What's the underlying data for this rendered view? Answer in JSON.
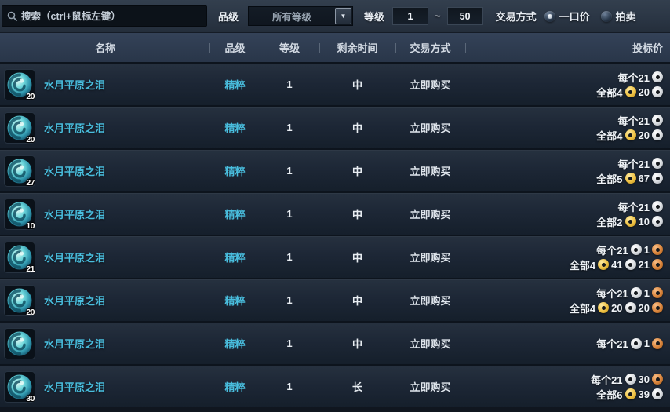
{
  "colors": {
    "accent_cyan": "#49bede",
    "coin_gold": "#eec143",
    "coin_silver": "#d9dce0",
    "coin_copper": "#d9843c"
  },
  "filter_bar": {
    "search": {
      "placeholder": "搜索（ctrl+鼠标左键）"
    },
    "grade_label": "品级",
    "grade_select": {
      "value": "所有等级"
    },
    "level_label": "等级",
    "level_min": "1",
    "range_separator": "~",
    "level_max": "50",
    "trade_label": "交易方式",
    "trade_options": [
      {
        "label": "一口价",
        "selected": true
      },
      {
        "label": "拍卖",
        "selected": false
      }
    ]
  },
  "table": {
    "headers": {
      "name": "名称",
      "grade": "品级",
      "level": "等级",
      "time": "剩余时间",
      "trade": "交易方式",
      "price": "投标价"
    },
    "rows": [
      {
        "name": "水月平原之泪",
        "stack": "20",
        "grade": "精粹",
        "level": "1",
        "time": "中",
        "trade": "立即购买",
        "price_each": [
          {
            "text": "每个21"
          },
          {
            "coin": "silver"
          }
        ],
        "price_total": [
          {
            "text": "全部4"
          },
          {
            "coin": "gold"
          },
          {
            "text": "20"
          },
          {
            "coin": "silver"
          }
        ]
      },
      {
        "name": "水月平原之泪",
        "stack": "20",
        "grade": "精粹",
        "level": "1",
        "time": "中",
        "trade": "立即购买",
        "price_each": [
          {
            "text": "每个21"
          },
          {
            "coin": "silver"
          }
        ],
        "price_total": [
          {
            "text": "全部4"
          },
          {
            "coin": "gold"
          },
          {
            "text": "20"
          },
          {
            "coin": "silver"
          }
        ]
      },
      {
        "name": "水月平原之泪",
        "stack": "27",
        "grade": "精粹",
        "level": "1",
        "time": "中",
        "trade": "立即购买",
        "price_each": [
          {
            "text": "每个21"
          },
          {
            "coin": "silver"
          }
        ],
        "price_total": [
          {
            "text": "全部5"
          },
          {
            "coin": "gold"
          },
          {
            "text": "67"
          },
          {
            "coin": "silver"
          }
        ]
      },
      {
        "name": "水月平原之泪",
        "stack": "10",
        "grade": "精粹",
        "level": "1",
        "time": "中",
        "trade": "立即购买",
        "price_each": [
          {
            "text": "每个21"
          },
          {
            "coin": "silver"
          }
        ],
        "price_total": [
          {
            "text": "全部2"
          },
          {
            "coin": "gold"
          },
          {
            "text": "10"
          },
          {
            "coin": "silver"
          }
        ]
      },
      {
        "name": "水月平原之泪",
        "stack": "21",
        "grade": "精粹",
        "level": "1",
        "time": "中",
        "trade": "立即购买",
        "price_each": [
          {
            "text": "每个21"
          },
          {
            "coin": "silver"
          },
          {
            "text": "1"
          },
          {
            "coin": "copper"
          }
        ],
        "price_total": [
          {
            "text": "全部4"
          },
          {
            "coin": "gold"
          },
          {
            "text": "41"
          },
          {
            "coin": "silver"
          },
          {
            "text": "21"
          },
          {
            "coin": "copper"
          }
        ]
      },
      {
        "name": "水月平原之泪",
        "stack": "20",
        "grade": "精粹",
        "level": "1",
        "time": "中",
        "trade": "立即购买",
        "price_each": [
          {
            "text": "每个21"
          },
          {
            "coin": "silver"
          },
          {
            "text": "1"
          },
          {
            "coin": "copper"
          }
        ],
        "price_total": [
          {
            "text": "全部4"
          },
          {
            "coin": "gold"
          },
          {
            "text": "20"
          },
          {
            "coin": "silver"
          },
          {
            "text": "20"
          },
          {
            "coin": "copper"
          }
        ]
      },
      {
        "name": "水月平原之泪",
        "stack": "",
        "grade": "精粹",
        "level": "1",
        "time": "中",
        "trade": "立即购买",
        "price_each": [
          {
            "text": "每个21"
          },
          {
            "coin": "silver"
          },
          {
            "text": "1"
          },
          {
            "coin": "copper"
          }
        ],
        "price_total": []
      },
      {
        "name": "水月平原之泪",
        "stack": "30",
        "grade": "精粹",
        "level": "1",
        "time": "长",
        "trade": "立即购买",
        "price_each": [
          {
            "text": "每个21"
          },
          {
            "coin": "silver"
          },
          {
            "text": "30"
          },
          {
            "coin": "copper"
          }
        ],
        "price_total": [
          {
            "text": "全部6"
          },
          {
            "coin": "gold"
          },
          {
            "text": "39"
          },
          {
            "coin": "silver"
          }
        ]
      }
    ]
  }
}
